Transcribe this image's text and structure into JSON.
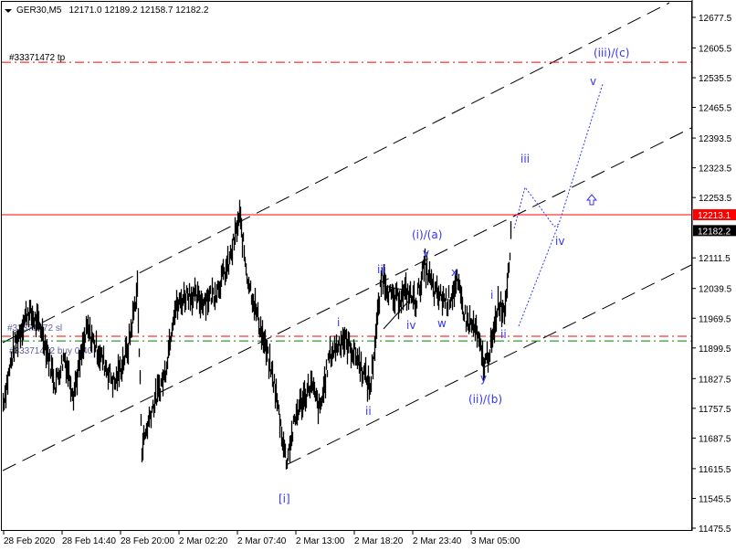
{
  "header": {
    "symbol": "GER30,M5",
    "ohlc": "12171.0 12189.2 12158.7 12182.2"
  },
  "order_labels": {
    "tp": "#33371472 tp",
    "sl": "#33371472 sl",
    "buy": "#33371472 buy 0.40"
  },
  "price_axis": {
    "ticks": [
      "12677.5",
      "12605.5",
      "12535.5",
      "12465.5",
      "12393.5",
      "12323.5",
      "12253.5",
      "12111.5",
      "12039.5",
      "11969.5",
      "11899.5",
      "11827.5",
      "11757.5",
      "11687.5",
      "11615.5",
      "11545.5",
      "11475.5"
    ],
    "range": [
      11475.5,
      12677.5
    ],
    "current_level": "12213.1",
    "bid": "12182.2"
  },
  "time_axis": {
    "ticks": [
      "28 Feb 2020",
      "28 Feb 14:40",
      "28 Feb 20:00",
      "2 Mar 02:20",
      "2 Mar 07:40",
      "2 Mar 13:00",
      "2 Mar 18:20",
      "2 Mar 23:40",
      "3 Mar 05:00"
    ]
  },
  "levels": {
    "tp": 12572,
    "sl": 11927,
    "buy": 11916,
    "resistance": 12213.1
  },
  "colors": {
    "candles": "#000000",
    "tp_sl": "#ff0000",
    "buy": "#008000",
    "wave_labels": "#3333ff",
    "bid_bg": "#000000",
    "level_bg": "#ff0000"
  },
  "price_path": [
    [
      3,
      11772
    ],
    [
      15,
      11901
    ],
    [
      30,
      11987
    ],
    [
      45,
      11944
    ],
    [
      60,
      11815
    ],
    [
      70,
      11880
    ],
    [
      80,
      11794
    ],
    [
      95,
      11944
    ],
    [
      110,
      11880
    ],
    [
      125,
      11815
    ],
    [
      140,
      11901
    ],
    [
      150,
      12041
    ],
    [
      155,
      11665
    ],
    [
      165,
      11751
    ],
    [
      180,
      11837
    ],
    [
      190,
      11987
    ],
    [
      205,
      12030
    ],
    [
      220,
      12009
    ],
    [
      235,
      12030
    ],
    [
      250,
      12095
    ],
    [
      262,
      12209
    ],
    [
      270,
      12073
    ],
    [
      285,
      11944
    ],
    [
      300,
      11815
    ],
    [
      313,
      11633
    ],
    [
      325,
      11751
    ],
    [
      340,
      11815
    ],
    [
      350,
      11751
    ],
    [
      360,
      11880
    ],
    [
      375,
      11923
    ],
    [
      390,
      11880
    ],
    [
      405,
      11805
    ],
    [
      418,
      12073
    ],
    [
      430,
      12009
    ],
    [
      445,
      12030
    ],
    [
      455,
      12009
    ],
    [
      465,
      12095
    ],
    [
      475,
      12030
    ],
    [
      490,
      12009
    ],
    [
      500,
      12052
    ],
    [
      510,
      11966
    ],
    [
      520,
      11944
    ],
    [
      530,
      11858
    ],
    [
      540,
      11923
    ],
    [
      545,
      12009
    ],
    [
      552,
      11987
    ],
    [
      560,
      12182
    ]
  ],
  "wave_labels": {
    "w1": "[i]",
    "ii_low": "ii",
    "i_small": "i",
    "iii": "iii",
    "iv": "iv",
    "v": "v",
    "wave_i_a": "(i)/(a)",
    "x": "x",
    "w": "w",
    "y": "y",
    "wave_ii_b": "(ii)/(b)",
    "i2": "i",
    "ii2": "ii",
    "iii2": "iii",
    "iv2": "iv",
    "v2": "v",
    "wave_iii_c": "(iii)/(c)"
  },
  "icons": {
    "arrow": "up-arrow-icon",
    "menu": "triangle-down-icon"
  }
}
